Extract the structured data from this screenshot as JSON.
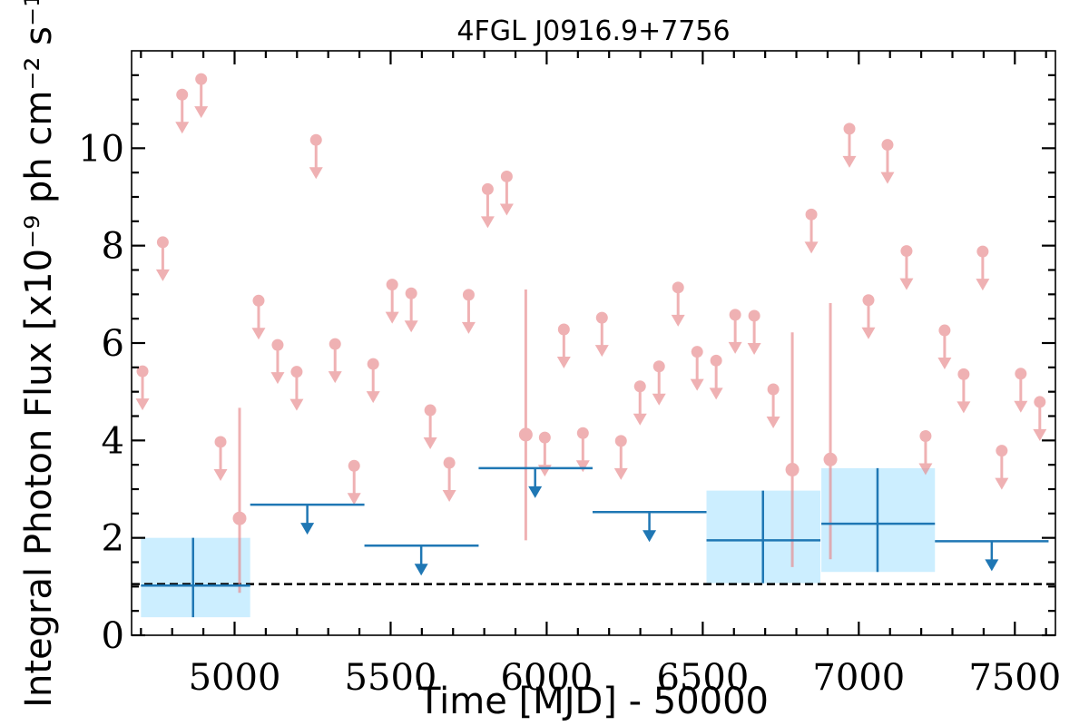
{
  "chart_data": {
    "type": "scatter",
    "title": "4FGL J0916.9+7756",
    "xlabel": "Time [MJD] - 50000",
    "ylabel": "Integral Photon Flux [x10⁻⁹ ph cm⁻² s⁻¹]",
    "xlim": [
      4670,
      7630
    ],
    "ylim": [
      0,
      12
    ],
    "x_ticks": [
      5000,
      5500,
      6000,
      6500,
      7000,
      7500
    ],
    "y_ticks": [
      0,
      2,
      4,
      6,
      8,
      10
    ],
    "reference_line": {
      "y": 1.05,
      "style": "dashed",
      "color": "#000000"
    },
    "colors": {
      "short_bins": "#e8888c",
      "long_bins": "#1f77b4",
      "long_bins_band": "#cceeff"
    },
    "series": [
      {
        "marker": "circle",
        "upper_limits": [
          {
            "x": 4705,
            "y": 5.42
          },
          {
            "x": 4770,
            "y": 8.07
          },
          {
            "x": 4832,
            "y": 11.1
          },
          {
            "x": 4893,
            "y": 11.42
          },
          {
            "x": 4955,
            "y": 3.97
          },
          {
            "x": 5077,
            "y": 6.87
          },
          {
            "x": 5138,
            "y": 5.96
          },
          {
            "x": 5199,
            "y": 5.41
          },
          {
            "x": 5261,
            "y": 10.17
          },
          {
            "x": 5322,
            "y": 5.98
          },
          {
            "x": 5383,
            "y": 3.48
          },
          {
            "x": 5444,
            "y": 5.57
          },
          {
            "x": 5505,
            "y": 7.2
          },
          {
            "x": 5566,
            "y": 7.02
          },
          {
            "x": 5627,
            "y": 4.62
          },
          {
            "x": 5688,
            "y": 3.54
          },
          {
            "x": 5750,
            "y": 6.99
          },
          {
            "x": 5811,
            "y": 9.16
          },
          {
            "x": 5872,
            "y": 9.42
          },
          {
            "x": 5994,
            "y": 4.06
          },
          {
            "x": 6055,
            "y": 6.28
          },
          {
            "x": 6116,
            "y": 4.15
          },
          {
            "x": 6177,
            "y": 6.52
          },
          {
            "x": 6238,
            "y": 3.99
          },
          {
            "x": 6299,
            "y": 5.11
          },
          {
            "x": 6360,
            "y": 5.52
          },
          {
            "x": 6421,
            "y": 7.14
          },
          {
            "x": 6482,
            "y": 5.82
          },
          {
            "x": 6543,
            "y": 5.64
          },
          {
            "x": 6604,
            "y": 6.58
          },
          {
            "x": 6665,
            "y": 6.56
          },
          {
            "x": 6726,
            "y": 5.05
          },
          {
            "x": 6848,
            "y": 8.64
          },
          {
            "x": 6970,
            "y": 10.4
          },
          {
            "x": 7031,
            "y": 6.88
          },
          {
            "x": 7092,
            "y": 10.07
          },
          {
            "x": 7153,
            "y": 7.89
          },
          {
            "x": 7214,
            "y": 4.09
          },
          {
            "x": 7275,
            "y": 6.26
          },
          {
            "x": 7336,
            "y": 5.36
          },
          {
            "x": 7397,
            "y": 7.88
          },
          {
            "x": 7458,
            "y": 3.79
          },
          {
            "x": 7519,
            "y": 5.37
          },
          {
            "x": 7580,
            "y": 4.79
          }
        ],
        "detections": [
          {
            "x": 5016,
            "y": 2.4,
            "ylow": 0.87,
            "yhigh": 4.67
          },
          {
            "x": 5933,
            "y": 4.12,
            "ylow": 1.95,
            "yhigh": 7.1
          },
          {
            "x": 6787,
            "y": 3.4,
            "ylow": 1.4,
            "yhigh": 6.22
          },
          {
            "x": 6909,
            "y": 3.61,
            "ylow": 1.56,
            "yhigh": 6.82
          }
        ]
      },
      {
        "marker": "bin",
        "detections": [
          {
            "x": 4867,
            "xlow": 4700,
            "xhigh": 5050,
            "y": 1.02,
            "ylow": 0.37,
            "yhigh": 2.0
          },
          {
            "x": 6693,
            "xlow": 6512,
            "xhigh": 6877,
            "y": 1.95,
            "ylow": 1.07,
            "yhigh": 2.97
          },
          {
            "x": 7060,
            "xlow": 6880,
            "xhigh": 7244,
            "y": 2.29,
            "ylow": 1.3,
            "yhigh": 3.43
          }
        ],
        "upper_limits": [
          {
            "x": 5233,
            "xlow": 5050,
            "xhigh": 5416,
            "y": 2.68
          },
          {
            "x": 5598,
            "xlow": 5416,
            "xhigh": 5782,
            "y": 1.84
          },
          {
            "x": 5963,
            "xlow": 5782,
            "xhigh": 6147,
            "y": 3.43
          },
          {
            "x": 6329,
            "xlow": 6147,
            "xhigh": 6512,
            "y": 2.53
          },
          {
            "x": 7426,
            "xlow": 7244,
            "xhigh": 7608,
            "y": 1.93
          }
        ]
      }
    ]
  }
}
